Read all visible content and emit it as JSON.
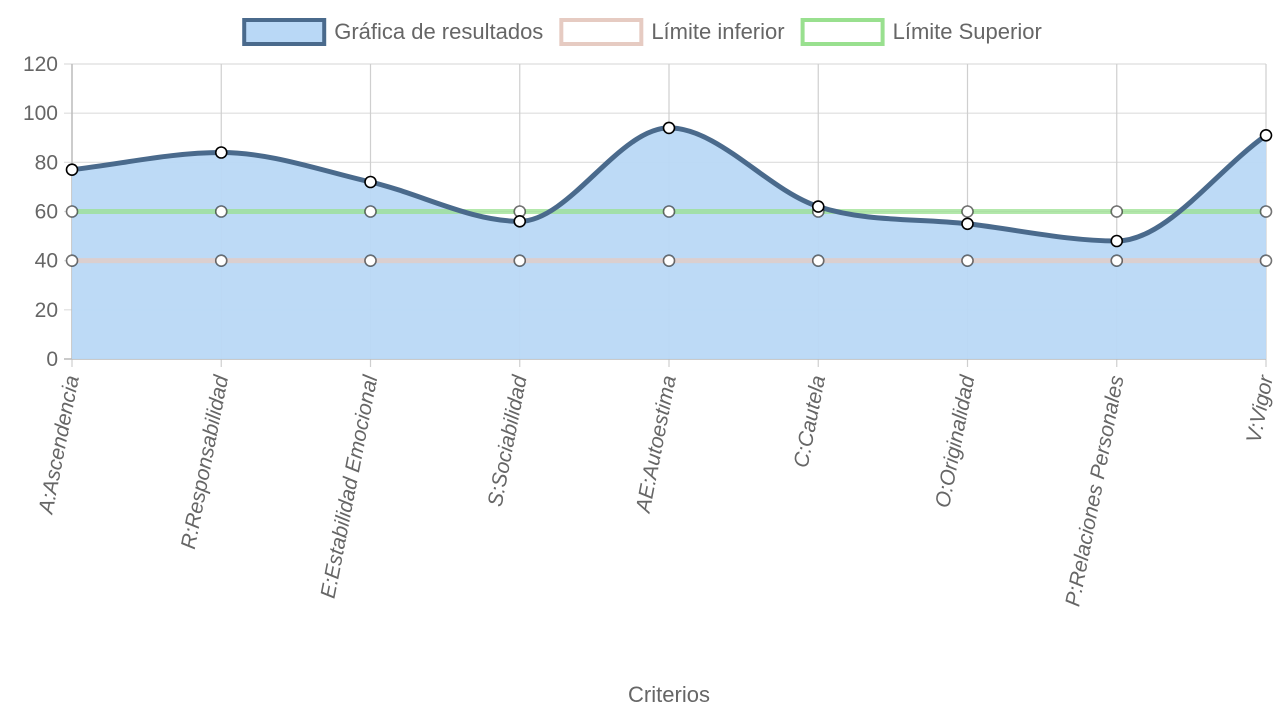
{
  "chart_data": {
    "type": "line",
    "categories": [
      "A:Ascendencia",
      "R:Responsabilidad",
      "E:Estabilidad Emocional",
      "S:Sociabilidad",
      "AE:Autoestima",
      "C:Cautela",
      "O:Originalidad",
      "P:Relaciones Personales",
      "V:Vigor"
    ],
    "series": [
      {
        "name": "Gráfica de resultados",
        "values": [
          77,
          84,
          72,
          56,
          94,
          62,
          55,
          48,
          91
        ],
        "fill": true,
        "border_color": "#4a6a8c",
        "fill_color": "#b9d8f6",
        "point_fill": "#ffffff",
        "point_stroke": "#000000"
      },
      {
        "name": "Límite inferior",
        "values": [
          40,
          40,
          40,
          40,
          40,
          40,
          40,
          40,
          40
        ],
        "fill": false,
        "border_color": "#e6cbc2",
        "point_fill": "#ffffff",
        "point_stroke": "#000000"
      },
      {
        "name": "Límite Superior",
        "values": [
          60,
          60,
          60,
          60,
          60,
          60,
          60,
          60,
          60
        ],
        "fill": false,
        "border_color": "#99e08f",
        "point_fill": "#ffffff",
        "point_stroke": "#000000"
      }
    ],
    "title": "",
    "xlabel": "Criterios",
    "ylabel": "",
    "ylim": [
      0,
      120
    ],
    "yticks": [
      0,
      20,
      40,
      60,
      80,
      100,
      120
    ],
    "grid": true,
    "legend": "top-center",
    "smooth": true
  }
}
